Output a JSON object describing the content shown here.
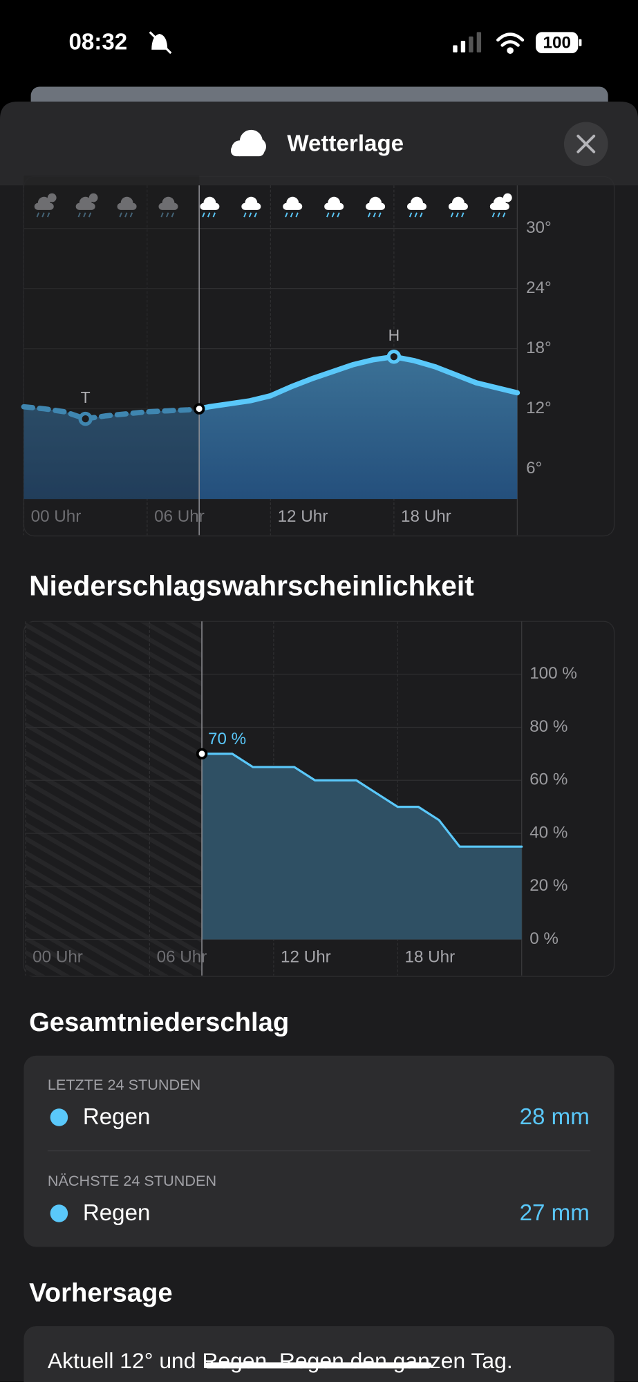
{
  "status_bar": {
    "time": "08:32",
    "battery": "100"
  },
  "header": {
    "title": "Wetterlage"
  },
  "chart_data": [
    {
      "type": "area",
      "color": "#5ac8fa",
      "now": 8.53,
      "x": [
        0,
        1,
        2,
        3,
        4,
        5,
        6,
        7,
        8,
        8.53,
        9,
        10,
        11,
        12,
        13,
        14,
        15,
        16,
        17,
        18,
        19,
        20,
        21,
        22,
        23,
        24
      ],
      "values": [
        12.2,
        12.0,
        11.7,
        11.0,
        11.3,
        11.5,
        11.7,
        11.8,
        11.9,
        12.0,
        12.2,
        12.5,
        12.8,
        13.3,
        14.2,
        15.0,
        15.7,
        16.4,
        16.9,
        17.2,
        16.8,
        16.2,
        15.4,
        14.6,
        14.1,
        13.6
      ],
      "xlim": [
        0,
        24
      ],
      "xticks": [
        {
          "value": 0,
          "label": "00 Uhr"
        },
        {
          "value": 6,
          "label": "06 Uhr"
        },
        {
          "value": 12,
          "label": "12 Uhr"
        },
        {
          "value": 18,
          "label": "18 Uhr"
        }
      ],
      "ylim": [
        3,
        30
      ],
      "yticks": [
        {
          "value": 6,
          "label": "6°"
        },
        {
          "value": 12,
          "label": "12°"
        },
        {
          "value": 18,
          "label": "18°"
        },
        {
          "value": 24,
          "label": "24°"
        },
        {
          "value": 30,
          "label": "30°"
        }
      ],
      "annotations": [
        {
          "label": "T",
          "x": 3
        },
        {
          "label": "H",
          "x": 18
        }
      ],
      "grid": true
    },
    {
      "type": "area",
      "title": "Niederschlagswahrscheinlichkeit",
      "color": "#5ac8fa",
      "now": 8.53,
      "x": [
        8.53,
        9,
        10,
        11,
        12,
        13,
        14,
        15,
        16,
        17,
        18,
        19,
        20,
        21,
        22,
        23,
        24
      ],
      "values": [
        70,
        70,
        70,
        65,
        65,
        65,
        60,
        60,
        60,
        55,
        50,
        50,
        45,
        35,
        35,
        35,
        35
      ],
      "value_labels": [
        "70 %",
        null,
        null,
        null,
        null,
        null,
        null,
        null,
        null,
        null,
        null,
        null,
        null,
        null,
        null,
        null,
        null
      ],
      "xlim": [
        0,
        24
      ],
      "xticks": [
        {
          "value": 0,
          "label": "00 Uhr"
        },
        {
          "value": 6,
          "label": "06 Uhr"
        },
        {
          "value": 12,
          "label": "12 Uhr"
        },
        {
          "value": 18,
          "label": "18 Uhr"
        }
      ],
      "ylim": [
        0,
        100
      ],
      "yticks": [
        {
          "value": 0,
          "label": "0 %"
        },
        {
          "value": 20,
          "label": "20 %"
        },
        {
          "value": 40,
          "label": "40 %"
        },
        {
          "value": 60,
          "label": "60 %"
        },
        {
          "value": 80,
          "label": "80 %"
        },
        {
          "value": 100,
          "label": "100 %"
        }
      ],
      "grid": true
    }
  ],
  "totals": {
    "title": "Gesamtniederschlag",
    "rows": [
      {
        "period": "LETZTE 24 STUNDEN",
        "type": "Regen",
        "amount": "28 mm"
      },
      {
        "period": "NÄCHSTE 24 STUNDEN",
        "type": "Regen",
        "amount": "27 mm"
      }
    ]
  },
  "forecast": {
    "title": "Vorhersage",
    "text": "Aktuell 12° und Regen. Regen den ganzen Tag."
  }
}
